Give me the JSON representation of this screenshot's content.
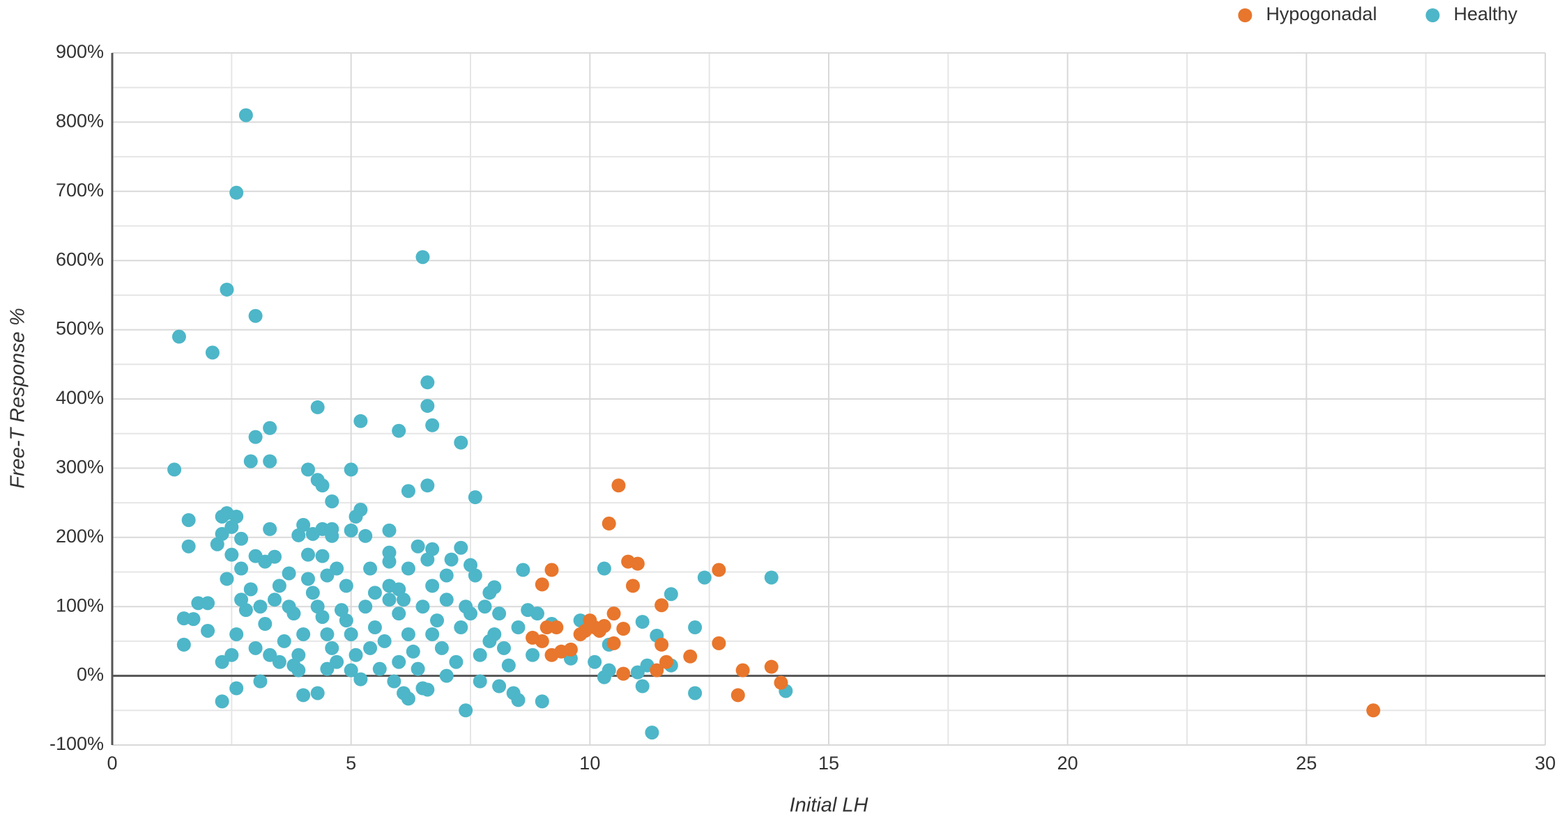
{
  "chart_data": {
    "type": "scatter",
    "x_label": "Initial LH",
    "y_label": "Free-T Response %",
    "xlim": [
      0,
      30
    ],
    "xticks": [
      0,
      5,
      10,
      15,
      20,
      25,
      30
    ],
    "ylim": [
      -100,
      900
    ],
    "yticks": [
      {
        "value": -100,
        "label": "-100%"
      },
      {
        "value": 0,
        "label": "0%"
      },
      {
        "value": 100,
        "label": "100%"
      },
      {
        "value": 200,
        "label": "200%"
      },
      {
        "value": 300,
        "label": "300%"
      },
      {
        "value": 400,
        "label": "400%"
      },
      {
        "value": 500,
        "label": "500%"
      },
      {
        "value": 600,
        "label": "600%"
      },
      {
        "value": 700,
        "label": "700%"
      },
      {
        "value": 800,
        "label": "800%"
      },
      {
        "value": 900,
        "label": "900%"
      }
    ],
    "grid": true,
    "minor_grid": true,
    "legend": "top-right",
    "series": [
      {
        "name": "Hypogonadal",
        "color": "#e8762c",
        "x": [
          26.4,
          10.6,
          10.4,
          9.2,
          9,
          10.8,
          11,
          10.9,
          12.7,
          11.5,
          10.5,
          10.2,
          10,
          9.8,
          10.7,
          10.3,
          9.1,
          8.8,
          9.3,
          9.4,
          9,
          9.2,
          9.6,
          10.5,
          11.5,
          12.1,
          12.7,
          13.8,
          13.2,
          14,
          13.1,
          10.7,
          11.6,
          11.4,
          10.1,
          9.9
        ],
        "values": [
          -50,
          275,
          220,
          153,
          132,
          165,
          162,
          130,
          153,
          102,
          90,
          65,
          80,
          60,
          68,
          72,
          70,
          55,
          70,
          35,
          50,
          30,
          38,
          47,
          45,
          28,
          47,
          13,
          8,
          -10,
          -28,
          3,
          20,
          8,
          70,
          65
        ]
      },
      {
        "name": "Healthy",
        "color": "#4db6c8",
        "x": [
          2.8,
          2.6,
          6.5,
          2.4,
          3,
          1.4,
          2.1,
          6.6,
          6.6,
          4.3,
          5.2,
          6.7,
          3.3,
          6,
          3,
          7.3,
          2.9,
          3.3,
          1.3,
          5,
          4.1,
          4.3,
          4.4,
          6.6,
          6.2,
          7.6,
          4.6,
          5.2,
          5.1,
          2.4,
          2.6,
          2.3,
          1.6,
          4,
          4.4,
          3.3,
          4.6,
          2.5,
          2.3,
          5,
          5.8,
          3.9,
          5.3,
          4.2,
          4.6,
          2.7,
          2.2,
          1.6,
          6.4,
          7.3,
          6.7,
          4.1,
          4.4,
          5.8,
          2.5,
          3,
          3.4,
          3.2,
          6.6,
          7.1,
          5.8,
          7.5,
          2.7,
          5.4,
          4.7,
          6.2,
          7,
          7.6,
          8.6,
          10.3,
          13.8,
          12.4,
          11.7,
          2.4,
          3.7,
          4.5,
          5.8,
          6,
          8,
          1.8,
          2,
          1.5,
          1.7,
          2,
          1.5,
          2.3,
          2.3,
          2.6,
          3.1,
          3.5,
          3.9,
          4,
          4.3,
          4.7,
          5,
          5.2,
          5.9,
          6.1,
          6.2,
          6.5,
          6.6,
          7,
          7.4,
          7.7,
          8.1,
          8.4,
          8.5,
          9,
          8.3,
          8.8,
          8.9,
          9.2,
          9.6,
          9.8,
          10.1,
          10.3,
          10.4,
          10.4,
          11,
          11.1,
          11.2,
          11.1,
          11.4,
          11.7,
          12.2,
          12.2,
          11.3,
          14.1,
          8.5,
          8.7,
          8.2,
          8,
          7.8,
          7.5,
          7,
          6.8,
          6.5,
          6.2,
          6,
          5.8,
          5.5,
          5.3,
          5,
          4.8,
          4.6,
          4.4,
          4.2,
          4,
          3.8,
          3.6,
          3.4,
          3.2,
          3,
          2.8,
          2.6,
          2.5,
          2.7,
          3.3,
          3.9,
          4.5,
          5.1,
          5.7,
          6.3,
          6.9,
          7.2,
          7.9,
          8.1,
          7.7,
          6.7,
          6,
          5.4,
          4.9,
          4.1,
          3.5,
          2.9,
          3.1,
          3.7,
          4.3,
          4.9,
          5.5,
          6.1,
          6.7,
          7.3,
          7.9,
          5.6,
          4.5,
          3.8,
          7.4,
          6.4
        ],
        "values": [
          810,
          698,
          605,
          558,
          520,
          490,
          467,
          424,
          390,
          388,
          368,
          362,
          358,
          354,
          345,
          337,
          310,
          310,
          298,
          298,
          298,
          283,
          275,
          275,
          267,
          258,
          252,
          240,
          230,
          235,
          230,
          230,
          225,
          218,
          212,
          212,
          212,
          215,
          205,
          210,
          210,
          203,
          202,
          205,
          202,
          198,
          190,
          187,
          187,
          185,
          183,
          175,
          173,
          178,
          175,
          173,
          172,
          165,
          168,
          168,
          165,
          160,
          155,
          155,
          155,
          155,
          145,
          145,
          153,
          155,
          142,
          142,
          118,
          140,
          148,
          145,
          130,
          125,
          128,
          105,
          105,
          83,
          82,
          65,
          45,
          20,
          -37,
          -18,
          -8,
          20,
          8,
          -28,
          -25,
          20,
          8,
          -5,
          -8,
          -25,
          -33,
          -18,
          -20,
          0,
          -50,
          -8,
          -15,
          -25,
          -35,
          -37,
          15,
          30,
          90,
          75,
          25,
          80,
          20,
          -2,
          8,
          45,
          5,
          -15,
          15,
          78,
          58,
          15,
          70,
          -25,
          -82,
          -22,
          70,
          95,
          40,
          60,
          100,
          90,
          110,
          80,
          100,
          60,
          90,
          110,
          70,
          100,
          60,
          95,
          40,
          85,
          120,
          60,
          90,
          50,
          110,
          75,
          40,
          95,
          60,
          30,
          110,
          30,
          30,
          60,
          30,
          50,
          35,
          40,
          20,
          50,
          90,
          30,
          130,
          20,
          40,
          130,
          140,
          130,
          125,
          100,
          100,
          100,
          80,
          120,
          110,
          60,
          70,
          120,
          10,
          10,
          15,
          100,
          10
        ]
      }
    ]
  }
}
